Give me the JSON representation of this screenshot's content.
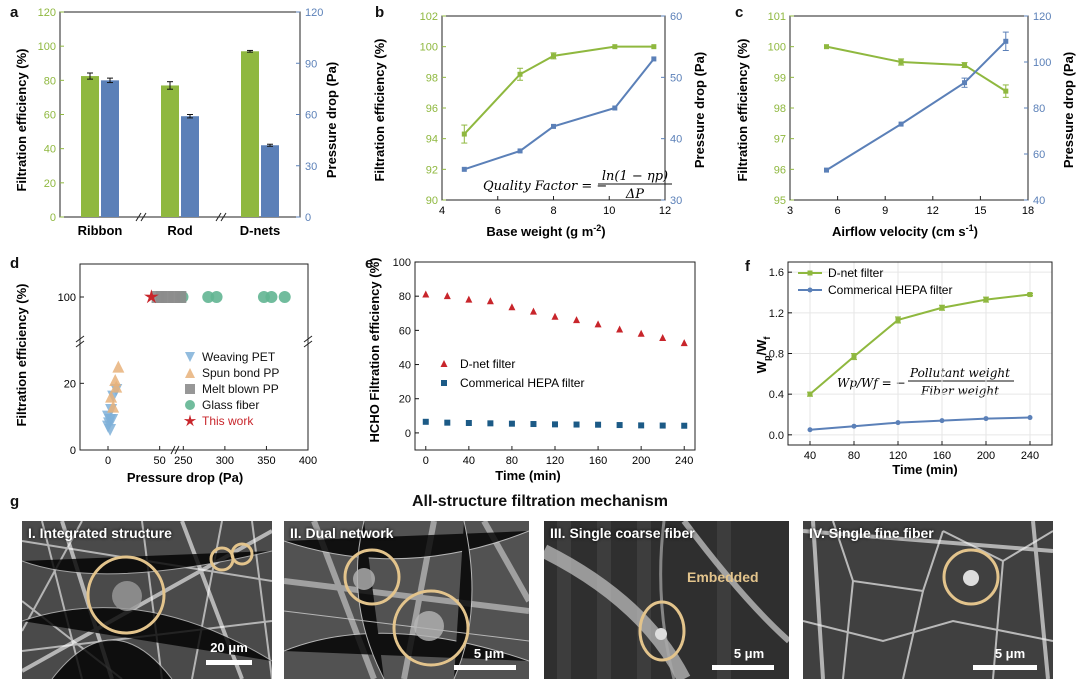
{
  "panel_labels": {
    "a": "a",
    "b": "b",
    "c": "c",
    "d": "d",
    "e": "e",
    "f": "f",
    "g": "g"
  },
  "colors": {
    "green": "#8fb83f",
    "blue": "#5b80b8",
    "red": "#c8252b",
    "navy": "#1c5a86",
    "orange": "#e8b27a",
    "lightblue": "#7fb0d8",
    "gray": "#8c8c8c",
    "teal": "#62b592"
  },
  "chart_data": [
    {
      "panel": "a",
      "type": "bar",
      "categories": [
        "Ribbon",
        "Rod",
        "D-nets"
      ],
      "series": [
        {
          "values": [
            82.5,
            77,
            97
          ],
          "errors": [
            1.8,
            2.2,
            0.5
          ],
          "axis": "left"
        },
        {
          "values": [
            80,
            59,
            42
          ],
          "errors": [
            1.3,
            1.0,
            0.6
          ],
          "axis": "right"
        }
      ],
      "ylabel": "Filtration efficiency (%)",
      "y2label": "Pressure drop (Pa)",
      "ylim": [
        0,
        120
      ],
      "y2lim": [
        0,
        120
      ],
      "yticks": [
        "0",
        "20",
        "40",
        "60",
        "80",
        "100",
        "120"
      ],
      "y2ticks": [
        "0",
        "30",
        "60",
        "90",
        "120"
      ]
    },
    {
      "panel": "b",
      "type": "line",
      "x": [
        4.8,
        6.8,
        8.0,
        10.2,
        11.6
      ],
      "series": [
        {
          "values": [
            94.3,
            98.2,
            99.4,
            100,
            100
          ],
          "axis": "left"
        },
        {
          "values": [
            35,
            38,
            42,
            45,
            53
          ],
          "axis": "right"
        }
      ],
      "xlabel_main": "Base weight (g m",
      "xlabel_sup": "-2",
      "xlabel_end": ")",
      "ylabel": "Filtration efficiency (%)",
      "y2label": "Pressure drop (Pa)",
      "xlim": [
        4,
        12
      ],
      "ylim": [
        90,
        102
      ],
      "y2lim": [
        30,
        60
      ],
      "xticks": [
        "4",
        "6",
        "8",
        "10",
        "12"
      ],
      "yticks": [
        "90",
        "92",
        "94",
        "96",
        "98",
        "100",
        "102"
      ],
      "y2ticks": [
        "30",
        "40",
        "50",
        "60"
      ],
      "equation": {
        "lhs": "Quality Factor = −",
        "num": "ln(1 − ηp)",
        "den": "ΔP"
      }
    },
    {
      "panel": "c",
      "type": "line",
      "x": [
        5.3,
        10.0,
        14.0,
        16.6
      ],
      "series": [
        {
          "values": [
            100,
            99.5,
            99.4,
            98.55
          ],
          "axis": "left"
        },
        {
          "values": [
            53,
            73,
            91,
            109
          ],
          "axis": "right"
        }
      ],
      "xlabel_main": "Airflow velocity (cm s",
      "xlabel_sup": "-1",
      "xlabel_end": ")",
      "ylabel": "Filtration efficiency (%)",
      "y2label": "Pressure drop (Pa)",
      "xlim": [
        3,
        18
      ],
      "ylim": [
        95,
        101
      ],
      "y2lim": [
        40,
        120
      ],
      "xticks": [
        "3",
        "6",
        "9",
        "12",
        "15",
        "18"
      ],
      "yticks": [
        "95",
        "96",
        "97",
        "98",
        "99",
        "100",
        "101"
      ],
      "y2ticks": [
        "40",
        "60",
        "80",
        "100",
        "120"
      ]
    },
    {
      "panel": "d",
      "type": "scatter",
      "xlabel": "Pressure drop (Pa)",
      "ylabel": "Filtration efficiency (%)",
      "xticks": [
        "0",
        "50",
        "250",
        "300",
        "350",
        "400"
      ],
      "yticks": [
        "0",
        "20",
        "100"
      ],
      "series": [
        {
          "name": "Weaving PET",
          "points": [
            [
              0,
              7
            ],
            [
              1,
              8
            ],
            [
              2,
              9
            ],
            [
              0,
              10
            ],
            [
              3,
              12
            ],
            [
              5,
              16
            ],
            [
              8,
              18
            ],
            [
              2,
              6
            ],
            [
              4,
              9
            ]
          ]
        },
        {
          "name": "Spun bond PP",
          "points": [
            [
              3,
              16
            ],
            [
              8,
              19
            ],
            [
              10,
              25
            ],
            [
              5,
              13
            ],
            [
              7,
              21
            ]
          ]
        },
        {
          "name": "Melt blown PP",
          "points": [
            [
              48,
              100
            ],
            [
              52,
              100
            ],
            [
              58,
              100
            ],
            [
              64,
              100
            ],
            [
              70,
              100
            ]
          ]
        },
        {
          "name": "Glass fiber",
          "points": [
            [
              249,
              100
            ],
            [
              280,
              100
            ],
            [
              290,
              100
            ],
            [
              347,
              100
            ],
            [
              356,
              100
            ],
            [
              372,
              100
            ]
          ]
        },
        {
          "name": "This work",
          "points": [
            [
              42,
              100
            ]
          ]
        }
      ]
    },
    {
      "panel": "e",
      "type": "scatter",
      "x": [
        0,
        20,
        40,
        60,
        80,
        100,
        120,
        140,
        160,
        180,
        200,
        220,
        240
      ],
      "series": [
        {
          "name": "D-net filter",
          "values": [
            81,
            80,
            78,
            77,
            73.5,
            71,
            68,
            66,
            63.5,
            60.5,
            58,
            55.5,
            52.5
          ]
        },
        {
          "name": "Commerical HEPA filter",
          "values": [
            6.5,
            6,
            5.8,
            5.6,
            5.4,
            5.2,
            5,
            4.9,
            4.8,
            4.6,
            4.4,
            4.3,
            4.2
          ]
        }
      ],
      "xlabel": "Time (min)",
      "ylabel": "HCHO Filtration efficiency (%)",
      "xlim": [
        -10,
        250
      ],
      "ylim": [
        -10,
        100
      ],
      "xticks": [
        "0",
        "40",
        "80",
        "120",
        "160",
        "200",
        "240"
      ],
      "yticks": [
        "0",
        "20",
        "40",
        "60",
        "80",
        "100"
      ]
    },
    {
      "panel": "f",
      "type": "line",
      "x": [
        40,
        80,
        120,
        160,
        200,
        240
      ],
      "series": [
        {
          "name": "D-net filter",
          "values": [
            0.4,
            0.77,
            1.13,
            1.25,
            1.33,
            1.38
          ],
          "errors": [
            0.02,
            0.03,
            0.03,
            0.025,
            0.025,
            0.01
          ]
        },
        {
          "name": "Commerical HEPA filter",
          "values": [
            0.05,
            0.085,
            0.12,
            0.14,
            0.16,
            0.17
          ]
        }
      ],
      "xlabel": "Time (min)",
      "ylabel_main": "W",
      "ylabel_sub1": "p",
      "ylabel_mid": "/W",
      "ylabel_sub2": "f",
      "xlim": [
        20,
        260
      ],
      "ylim": [
        -0.1,
        1.7
      ],
      "xticks": [
        "40",
        "80",
        "120",
        "160",
        "200",
        "240"
      ],
      "yticks": [
        "0.0",
        "0.4",
        "0.8",
        "1.2",
        "1.6"
      ],
      "equation": {
        "lhs": "Wp/Wf = −",
        "num": "Pollutant weight",
        "den": "Fiber weight"
      }
    }
  ],
  "sem": {
    "title": "All-structure filtration mechanism",
    "panels": [
      {
        "caption": "I. Integrated structure",
        "scale": "20 μm"
      },
      {
        "caption": "II. Dual network",
        "scale": "5 μm"
      },
      {
        "caption": "III. Single coarse fiber",
        "scale": "5 μm",
        "note": "Embedded"
      },
      {
        "caption": "IV. Single fine fiber",
        "scale": "5 μm"
      }
    ]
  }
}
